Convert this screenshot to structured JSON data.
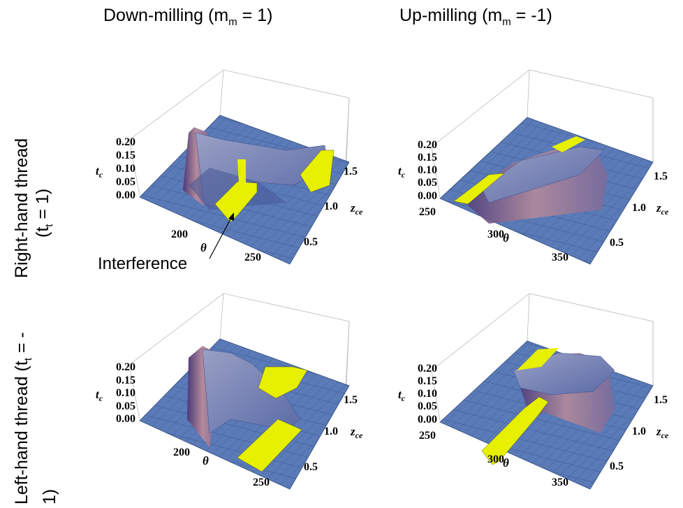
{
  "columns": [
    {
      "label": "Down-milling (m",
      "sub": "m",
      "rest": " = 1)"
    },
    {
      "label": "Up-milling (m",
      "sub": "m",
      "rest": " = -1)"
    }
  ],
  "rows": [
    {
      "line1_a": "Right-hand thread",
      "line2_a": "(t",
      "sub": "t",
      "line2_b": " = 1)"
    },
    {
      "line1_a": "Left-hand thread (t",
      "sub": "t",
      "line1_b": " = -",
      "line2_a": "1)"
    }
  ],
  "axes": {
    "tc_label": "t",
    "tc_sub": "c",
    "zce_label": "z",
    "zce_sub": "ce",
    "theta_label": "θ",
    "tc_ticks": [
      "0.20",
      "0.15",
      "0.10",
      "0.05",
      "0.00"
    ],
    "zce_ticks": [
      "1.5",
      "1.0",
      "0.5"
    ],
    "theta_ticks_down": [
      "200",
      "250"
    ],
    "theta_ticks_up": [
      "250",
      "300",
      "350"
    ]
  },
  "annotation": {
    "interference": "Interference"
  },
  "colors": {
    "floor": "#5a7ab8",
    "surface": "#7f8fc4",
    "highlight": "#e6f000",
    "wall": "#b48a9a",
    "grid": "#2e4a7a"
  }
}
